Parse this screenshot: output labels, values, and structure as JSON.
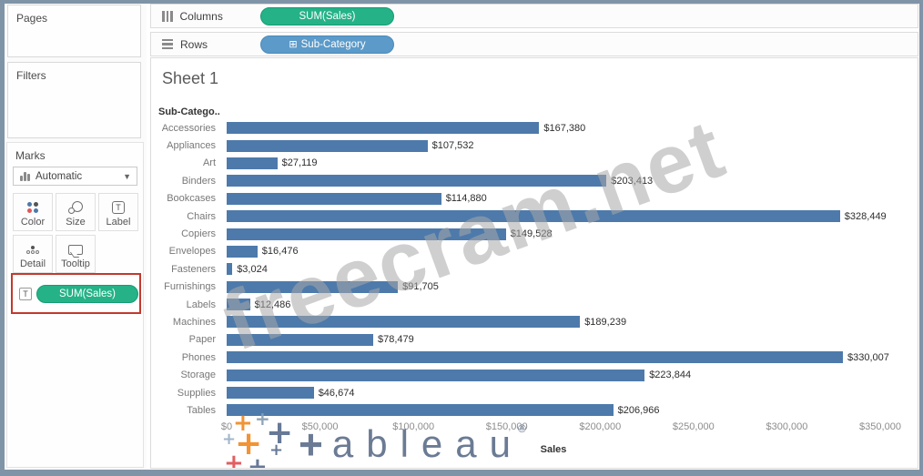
{
  "sidebar": {
    "pages_label": "Pages",
    "filters_label": "Filters",
    "marks": {
      "title": "Marks",
      "mark_type": "Automatic",
      "color_label": "Color",
      "size_label": "Size",
      "label_label": "Label",
      "detail_label": "Detail",
      "tooltip_label": "Tooltip",
      "label_chip": "T",
      "label_pill": "SUM(Sales)"
    }
  },
  "shelves": {
    "columns_label": "Columns",
    "columns_pill": "SUM(Sales)",
    "rows_label": "Rows",
    "rows_pill": "Sub-Category",
    "rows_pill_glyph": "⊞"
  },
  "sheet": {
    "title": "Sheet 1"
  },
  "watermarks": {
    "diagonal_text": "freecram.net",
    "logo_plus": "+",
    "logo_rest": "ableau",
    "logo_reg": "®"
  },
  "colors": {
    "bar": "#4d7aab",
    "measure_pill_green": "#25b287",
    "dimension_pill_blue": "#5b9ac9",
    "annotation_red": "#c3392e",
    "frame_border": "#8094a8",
    "tableau_orange": "#f28e2b",
    "tableau_red": "#e15759",
    "tableau_slate": "#5f7292",
    "tableau_light_slate": "#9db3c8"
  },
  "chart_data": {
    "type": "bar",
    "orientation": "horizontal",
    "title": "Sheet 1",
    "ylabel": "Sub-Catego..",
    "xlabel": "Sales",
    "grid": false,
    "xlim": [
      0,
      350000
    ],
    "x_ticks": [
      "$0",
      "$50,000",
      "$100,000",
      "$150,000",
      "$200,000",
      "$250,000",
      "$300,000",
      "$350,000"
    ],
    "categories": [
      "Accessories",
      "Appliances",
      "Art",
      "Binders",
      "Bookcases",
      "Chairs",
      "Copiers",
      "Envelopes",
      "Fasteners",
      "Furnishings",
      "Labels",
      "Machines",
      "Paper",
      "Phones",
      "Storage",
      "Supplies",
      "Tables"
    ],
    "values": [
      167380,
      107532,
      27119,
      203413,
      114880,
      328449,
      149528,
      16476,
      3024,
      91705,
      12486,
      189239,
      78479,
      330007,
      223844,
      46674,
      206966
    ],
    "value_labels": [
      "$167,380",
      "$107,532",
      "$27,119",
      "$203,413",
      "$114,880",
      "$328,449",
      "$149,528",
      "$16,476",
      "$3,024",
      "$91,705",
      "$12,486",
      "$189,239",
      "$78,479",
      "$330,007",
      "$223,844",
      "$46,674",
      "$206,966"
    ],
    "bar_color": "#4d7aab"
  }
}
